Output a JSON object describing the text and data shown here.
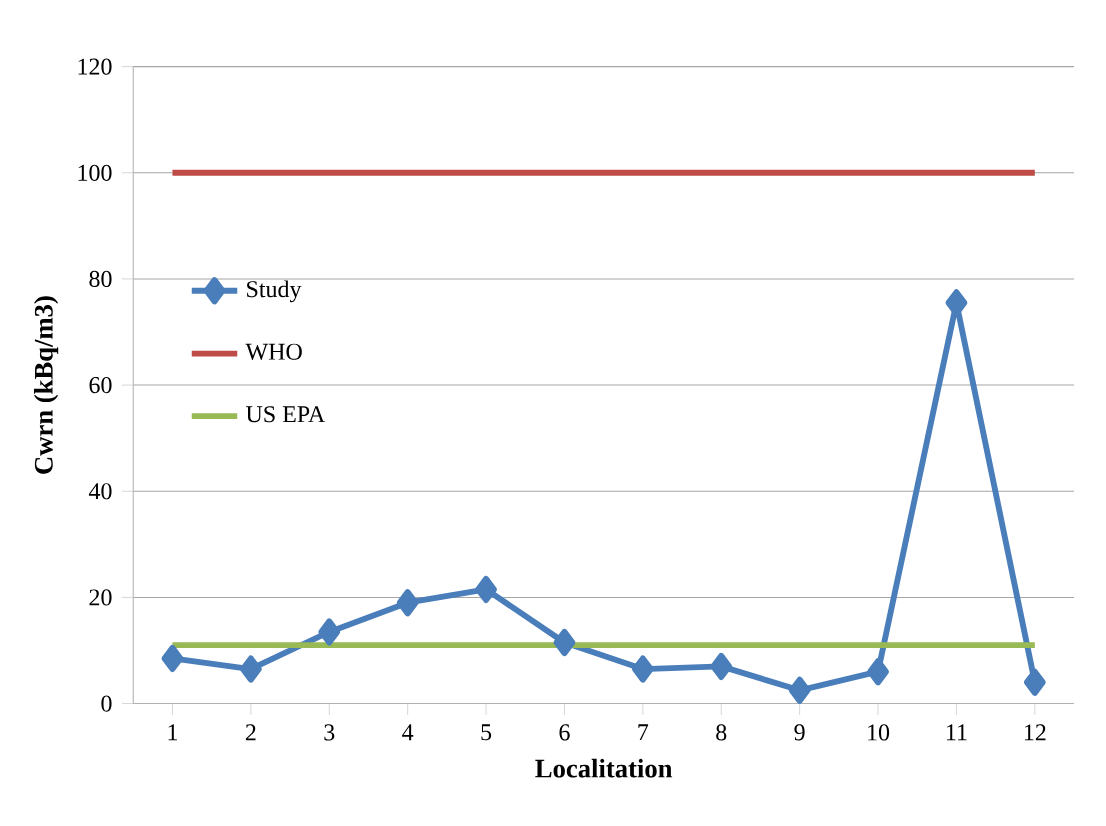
{
  "chart_data": {
    "type": "line",
    "xlabel": "Localitation",
    "ylabel": "Cwrn (kBq/m3)",
    "categories": [
      "1",
      "2",
      "3",
      "4",
      "5",
      "6",
      "7",
      "8",
      "9",
      "10",
      "11",
      "12"
    ],
    "series": [
      {
        "name": "Study",
        "color": "#4a7ebb",
        "marker": "diamond",
        "values": [
          8.5,
          6.5,
          13.5,
          19,
          21.5,
          11.5,
          6.5,
          7,
          2.5,
          6,
          75.5,
          4
        ]
      },
      {
        "name": "WHO",
        "color": "#be4b48",
        "marker": "none",
        "values": [
          100,
          100,
          100,
          100,
          100,
          100,
          100,
          100,
          100,
          100,
          100,
          100
        ]
      },
      {
        "name": "US EPA",
        "color": "#98b954",
        "marker": "none",
        "values": [
          11,
          11,
          11,
          11,
          11,
          11,
          11,
          11,
          11,
          11,
          11,
          11
        ]
      }
    ],
    "ylim": [
      0,
      120
    ],
    "yticks": [
      0,
      20,
      40,
      60,
      80,
      100,
      120
    ],
    "grid": "y",
    "legend": "left"
  }
}
